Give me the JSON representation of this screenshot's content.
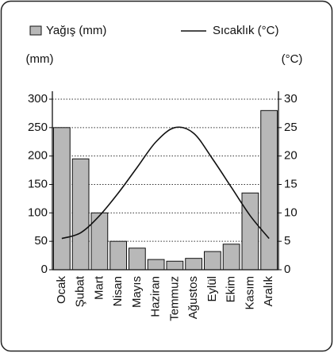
{
  "chart_data": {
    "type": "bar",
    "categories": [
      "Ocak",
      "Şubat",
      "Mart",
      "Nisan",
      "Mayıs",
      "Haziran",
      "Temmuz",
      "Ağustos",
      "Eylül",
      "Ekim",
      "Kasım",
      "Aralık"
    ],
    "series": [
      {
        "name": "Yağış (mm)",
        "type": "bar",
        "color": "#b8b8b8",
        "values": [
          250,
          195,
          100,
          50,
          38,
          18,
          15,
          20,
          32,
          45,
          135,
          280
        ]
      },
      {
        "name": "Sıcaklık (°C)",
        "type": "line",
        "axis": "y2",
        "color": "#111111",
        "values": [
          5.5,
          6.5,
          9.5,
          13.5,
          18,
          22.5,
          25,
          24,
          19.5,
          14.5,
          9.5,
          5.5
        ]
      }
    ],
    "y_label": "(mm)",
    "y2_label": "(°C)",
    "ylim": [
      0,
      300
    ],
    "yticks": [
      0,
      50,
      100,
      150,
      200,
      250,
      300
    ],
    "y2lim": [
      0,
      30
    ],
    "y2ticks": [
      0,
      5,
      10,
      15,
      20,
      25,
      30
    ],
    "grid": true
  }
}
